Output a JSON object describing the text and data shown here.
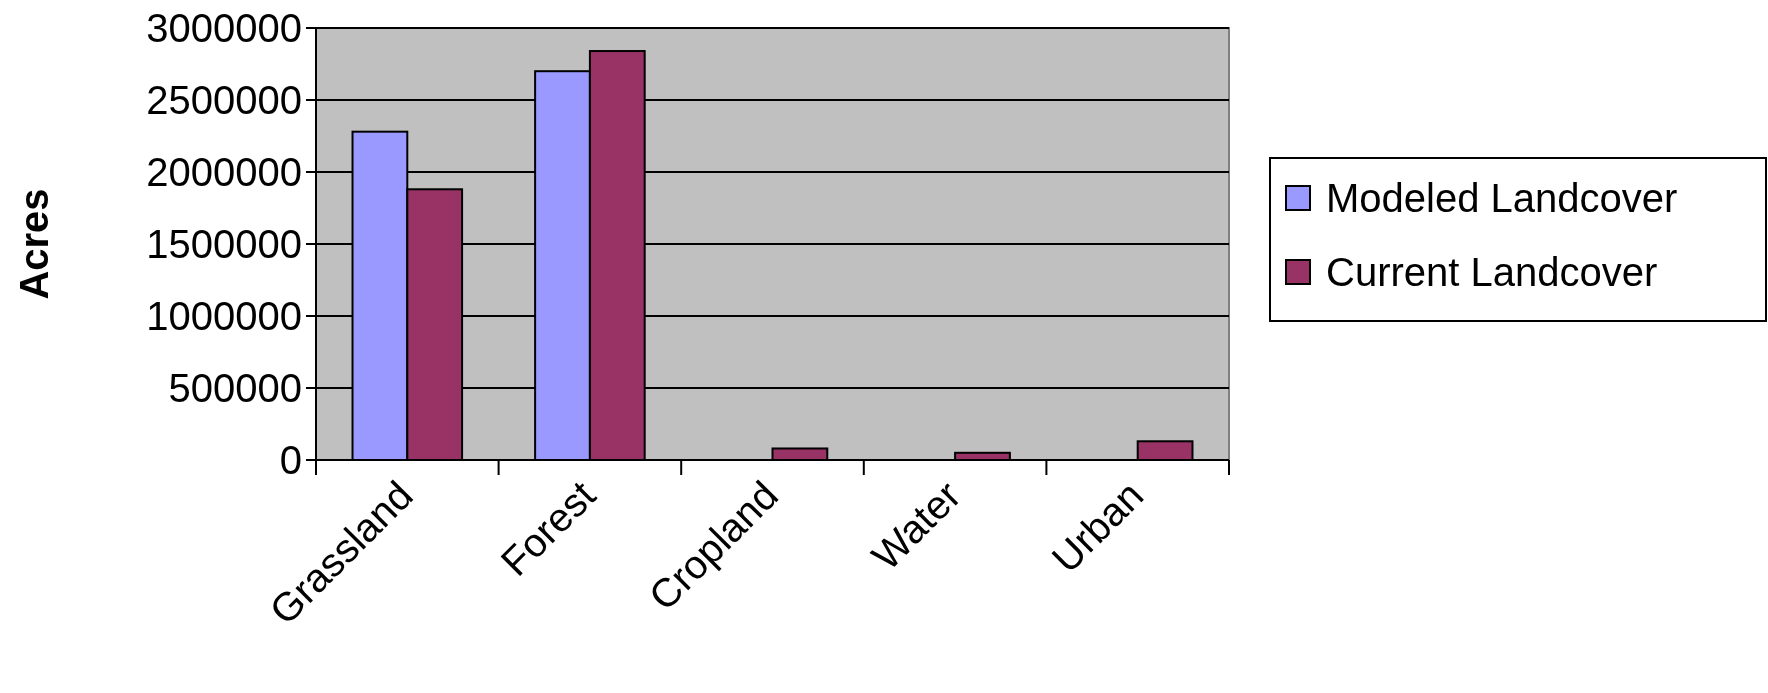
{
  "chart_data": {
    "type": "bar",
    "ylabel": "Acres",
    "categories": [
      "Grassland",
      "Forest",
      "Cropland",
      "Water",
      "Urban"
    ],
    "series": [
      {
        "name": "Modeled Landcover",
        "color": "#9999ff",
        "values": [
          2280000,
          2700000,
          0,
          0,
          0
        ]
      },
      {
        "name": "Current Landcover",
        "color": "#993366",
        "values": [
          1880000,
          2840000,
          80000,
          50000,
          130000
        ]
      }
    ],
    "ylim": [
      0,
      3000000
    ],
    "yticks": [
      0,
      500000,
      1000000,
      1500000,
      2000000,
      2500000,
      3000000
    ],
    "grid": "y",
    "legend": "right"
  }
}
